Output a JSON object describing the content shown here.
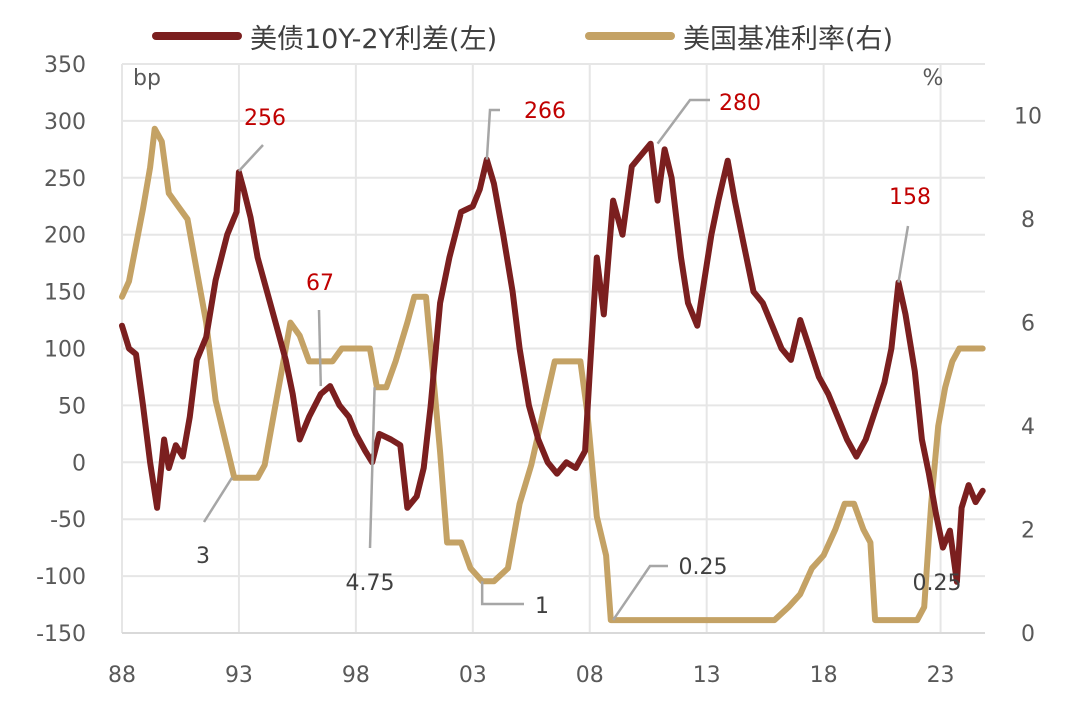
{
  "chart_data": {
    "type": "line",
    "x_labels": [
      "88",
      "93",
      "98",
      "03",
      "08",
      "13",
      "18",
      "23"
    ],
    "left_axis": {
      "unit": "bp",
      "ylim": [
        -150,
        350
      ],
      "ticks": [
        "350",
        "300",
        "250",
        "200",
        "150",
        "100",
        "50",
        "0",
        "-50",
        "-100",
        "-150"
      ]
    },
    "right_axis": {
      "unit": "%",
      "ylim": [
        0,
        11
      ],
      "ticks": [
        "10",
        "8",
        "6",
        "4",
        "2",
        "0"
      ]
    },
    "grid": true,
    "legend_position": "top",
    "series": [
      {
        "name": "美债10Y-2Y利差(左)",
        "axis": "left",
        "color": "#7b1f1f",
        "points": [
          [
            1988.0,
            120
          ],
          [
            1988.3,
            100
          ],
          [
            1988.6,
            95
          ],
          [
            1988.9,
            50
          ],
          [
            1989.2,
            0
          ],
          [
            1989.5,
            -40
          ],
          [
            1989.8,
            20
          ],
          [
            1990.0,
            -5
          ],
          [
            1990.3,
            15
          ],
          [
            1990.6,
            5
          ],
          [
            1990.9,
            40
          ],
          [
            1991.2,
            90
          ],
          [
            1991.6,
            110
          ],
          [
            1992.0,
            160
          ],
          [
            1992.5,
            200
          ],
          [
            1992.9,
            220
          ],
          [
            1993.0,
            255
          ],
          [
            1993.2,
            240
          ],
          [
            1993.5,
            215
          ],
          [
            1993.8,
            180
          ],
          [
            1994.2,
            150
          ],
          [
            1994.6,
            120
          ],
          [
            1995.0,
            90
          ],
          [
            1995.3,
            60
          ],
          [
            1995.6,
            20
          ],
          [
            1996.0,
            40
          ],
          [
            1996.5,
            60
          ],
          [
            1996.9,
            67
          ],
          [
            1997.3,
            50
          ],
          [
            1997.7,
            40
          ],
          [
            1998.0,
            25
          ],
          [
            1998.4,
            10
          ],
          [
            1998.7,
            0
          ],
          [
            1999.0,
            25
          ],
          [
            1999.5,
            20
          ],
          [
            1999.9,
            15
          ],
          [
            2000.2,
            -40
          ],
          [
            2000.6,
            -30
          ],
          [
            2000.9,
            -5
          ],
          [
            2001.2,
            50
          ],
          [
            2001.6,
            140
          ],
          [
            2002.0,
            180
          ],
          [
            2002.5,
            220
          ],
          [
            2003.0,
            225
          ],
          [
            2003.3,
            240
          ],
          [
            2003.6,
            266
          ],
          [
            2003.9,
            245
          ],
          [
            2004.3,
            200
          ],
          [
            2004.7,
            150
          ],
          [
            2005.0,
            100
          ],
          [
            2005.4,
            50
          ],
          [
            2005.8,
            20
          ],
          [
            2006.2,
            0
          ],
          [
            2006.6,
            -10
          ],
          [
            2007.0,
            0
          ],
          [
            2007.4,
            -5
          ],
          [
            2007.8,
            10
          ],
          [
            2008.0,
            80
          ],
          [
            2008.3,
            180
          ],
          [
            2008.6,
            130
          ],
          [
            2009.0,
            230
          ],
          [
            2009.4,
            200
          ],
          [
            2009.8,
            260
          ],
          [
            2010.2,
            270
          ],
          [
            2010.6,
            280
          ],
          [
            2010.9,
            230
          ],
          [
            2011.2,
            275
          ],
          [
            2011.5,
            250
          ],
          [
            2011.9,
            180
          ],
          [
            2012.2,
            140
          ],
          [
            2012.6,
            120
          ],
          [
            2012.9,
            160
          ],
          [
            2013.2,
            200
          ],
          [
            2013.5,
            230
          ],
          [
            2013.9,
            265
          ],
          [
            2014.2,
            230
          ],
          [
            2014.6,
            190
          ],
          [
            2015.0,
            150
          ],
          [
            2015.4,
            140
          ],
          [
            2015.8,
            120
          ],
          [
            2016.2,
            100
          ],
          [
            2016.6,
            90
          ],
          [
            2017.0,
            125
          ],
          [
            2017.4,
            100
          ],
          [
            2017.8,
            75
          ],
          [
            2018.2,
            60
          ],
          [
            2018.6,
            40
          ],
          [
            2019.0,
            20
          ],
          [
            2019.4,
            5
          ],
          [
            2019.8,
            20
          ],
          [
            2020.2,
            45
          ],
          [
            2020.6,
            70
          ],
          [
            2020.9,
            100
          ],
          [
            2021.2,
            158
          ],
          [
            2021.5,
            130
          ],
          [
            2021.9,
            80
          ],
          [
            2022.2,
            20
          ],
          [
            2022.5,
            -10
          ],
          [
            2022.8,
            -45
          ],
          [
            2023.1,
            -75
          ],
          [
            2023.4,
            -60
          ],
          [
            2023.7,
            -105
          ],
          [
            2023.9,
            -40
          ],
          [
            2024.2,
            -20
          ],
          [
            2024.5,
            -35
          ],
          [
            2024.8,
            -25
          ]
        ]
      },
      {
        "name": "美国基准利率(右)",
        "axis": "right",
        "color": "#c4a265",
        "points": [
          [
            1988.0,
            6.5
          ],
          [
            1988.3,
            6.8
          ],
          [
            1988.6,
            7.5
          ],
          [
            1988.9,
            8.2
          ],
          [
            1989.2,
            9.0
          ],
          [
            1989.4,
            9.75
          ],
          [
            1989.7,
            9.5
          ],
          [
            1990.0,
            8.5
          ],
          [
            1990.4,
            8.25
          ],
          [
            1990.8,
            8.0
          ],
          [
            1991.2,
            7.0
          ],
          [
            1991.6,
            6.0
          ],
          [
            1992.0,
            4.5
          ],
          [
            1992.4,
            3.75
          ],
          [
            1992.8,
            3.0
          ],
          [
            1993.3,
            3.0
          ],
          [
            1993.8,
            3.0
          ],
          [
            1994.1,
            3.25
          ],
          [
            1994.5,
            4.25
          ],
          [
            1994.9,
            5.25
          ],
          [
            1995.2,
            6.0
          ],
          [
            1995.6,
            5.75
          ],
          [
            1996.0,
            5.25
          ],
          [
            1996.5,
            5.25
          ],
          [
            1997.0,
            5.25
          ],
          [
            1997.4,
            5.5
          ],
          [
            1998.0,
            5.5
          ],
          [
            1998.6,
            5.5
          ],
          [
            1998.9,
            4.75
          ],
          [
            1999.3,
            4.75
          ],
          [
            1999.7,
            5.25
          ],
          [
            2000.2,
            6.0
          ],
          [
            2000.5,
            6.5
          ],
          [
            2001.0,
            6.5
          ],
          [
            2001.3,
            5.0
          ],
          [
            2001.6,
            3.5
          ],
          [
            2001.9,
            1.75
          ],
          [
            2002.5,
            1.75
          ],
          [
            2002.9,
            1.25
          ],
          [
            2003.4,
            1.0
          ],
          [
            2003.9,
            1.0
          ],
          [
            2004.5,
            1.25
          ],
          [
            2005.0,
            2.5
          ],
          [
            2005.5,
            3.25
          ],
          [
            2006.0,
            4.25
          ],
          [
            2006.5,
            5.25
          ],
          [
            2007.0,
            5.25
          ],
          [
            2007.6,
            5.25
          ],
          [
            2007.9,
            4.25
          ],
          [
            2008.3,
            2.25
          ],
          [
            2008.7,
            1.5
          ],
          [
            2008.9,
            0.25
          ],
          [
            2010.0,
            0.25
          ],
          [
            2012.0,
            0.25
          ],
          [
            2014.0,
            0.25
          ],
          [
            2015.9,
            0.25
          ],
          [
            2016.5,
            0.5
          ],
          [
            2017.0,
            0.75
          ],
          [
            2017.5,
            1.25
          ],
          [
            2018.0,
            1.5
          ],
          [
            2018.5,
            2.0
          ],
          [
            2018.9,
            2.5
          ],
          [
            2019.3,
            2.5
          ],
          [
            2019.7,
            2.0
          ],
          [
            2020.0,
            1.75
          ],
          [
            2020.2,
            0.25
          ],
          [
            2021.0,
            0.25
          ],
          [
            2022.0,
            0.25
          ],
          [
            2022.3,
            0.5
          ],
          [
            2022.6,
            2.5
          ],
          [
            2022.9,
            4.0
          ],
          [
            2023.2,
            4.75
          ],
          [
            2023.5,
            5.25
          ],
          [
            2023.8,
            5.5
          ],
          [
            2024.3,
            5.5
          ],
          [
            2024.8,
            5.5
          ]
        ]
      }
    ],
    "annotations": [
      {
        "text": "256",
        "color": "red",
        "target": [
          1993.0,
          256
        ]
      },
      {
        "text": "67",
        "color": "red",
        "target": [
          1996.5,
          67
        ]
      },
      {
        "text": "266",
        "color": "red",
        "target": [
          2003.6,
          266
        ]
      },
      {
        "text": "280",
        "color": "red",
        "target": [
          2010.9,
          280
        ]
      },
      {
        "text": "158",
        "color": "red",
        "target": [
          2021.2,
          158
        ]
      },
      {
        "text": "3",
        "color": "gray",
        "target": [
          1992.7,
          3.0
        ]
      },
      {
        "text": "4.75",
        "color": "gray",
        "target": [
          1998.8,
          4.75
        ]
      },
      {
        "text": "1",
        "color": "gray",
        "target": [
          2003.4,
          1.0
        ]
      },
      {
        "text": "0.25",
        "color": "gray",
        "target": [
          2009.0,
          0.25
        ]
      },
      {
        "text": "0.25",
        "color": "gray",
        "target": [
          2022.3,
          0.25
        ]
      }
    ]
  }
}
